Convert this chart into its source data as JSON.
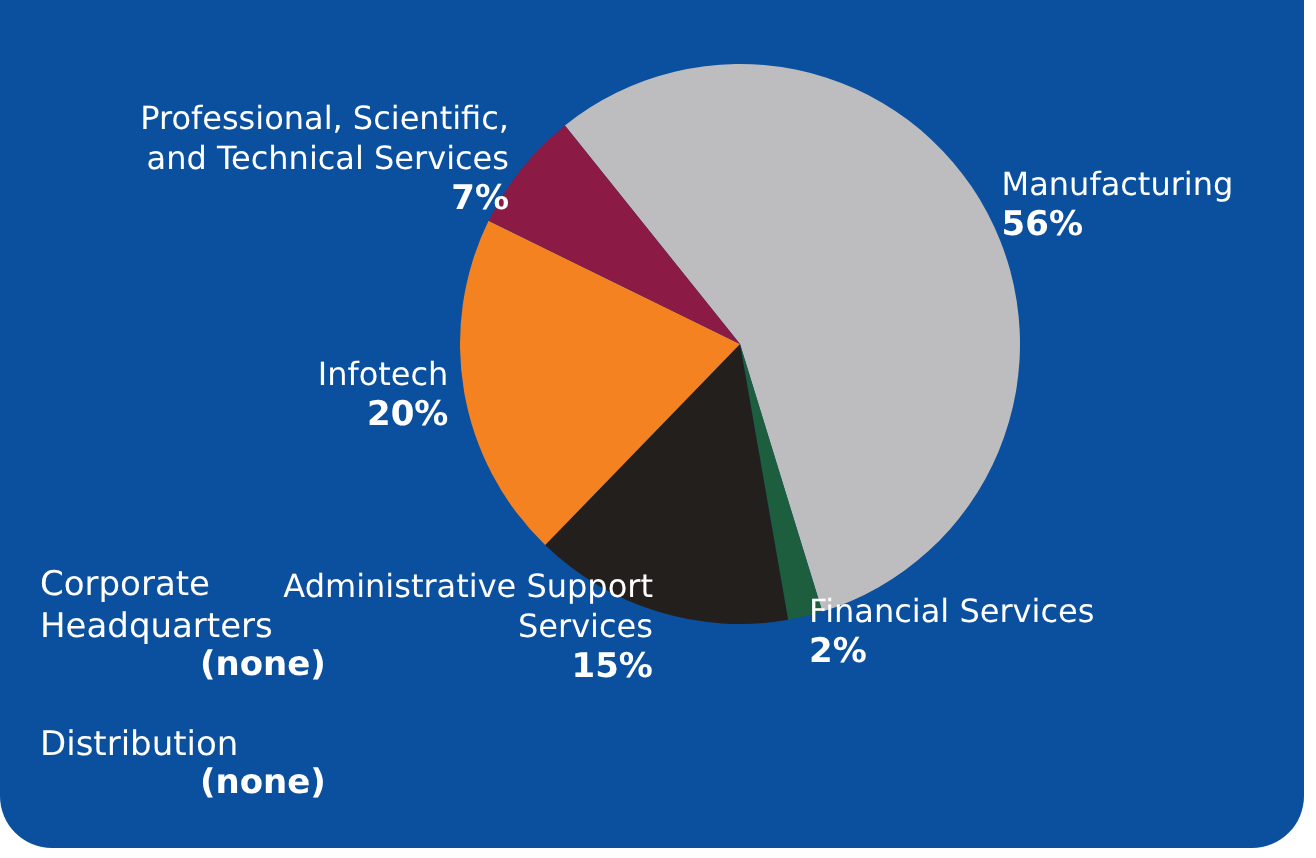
{
  "chart_data": {
    "type": "pie",
    "categories": [
      "Manufacturing",
      "Financial Services",
      "Administrative Support Services",
      "Infotech",
      "Professional, Scientific, and Technical Services",
      "Corporate Headquarters",
      "Distribution"
    ],
    "values": [
      56,
      2,
      15,
      20,
      7,
      0,
      0
    ],
    "value_labels": [
      "56%",
      "2%",
      "15%",
      "20%",
      "7%",
      "(none)",
      "(none)"
    ],
    "colors": [
      "#bdbdbf",
      "#1d5e3e",
      "#231f1c",
      "#f58220",
      "#8b1a44",
      "#bdbdbf",
      "#bdbdbf"
    ]
  }
}
